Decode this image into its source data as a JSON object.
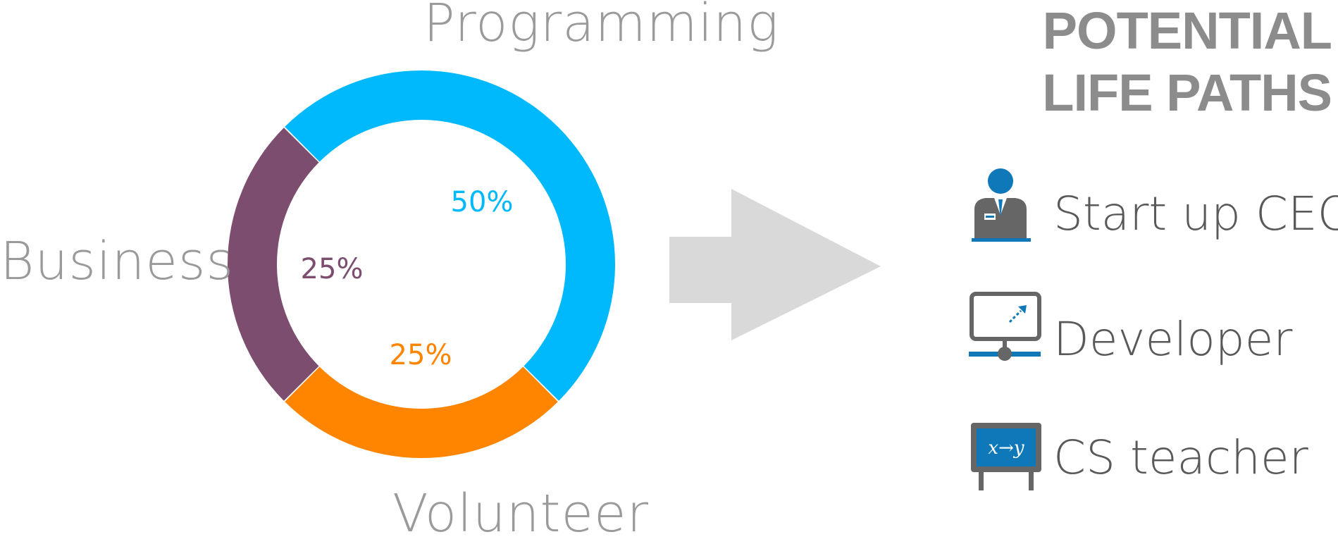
{
  "chart_data": {
    "type": "pie",
    "variant": "donut",
    "categories": [
      "Programming",
      "Volunteer",
      "Business"
    ],
    "values": [
      50,
      25,
      25
    ],
    "value_labels": [
      "50%",
      "25%",
      "25%"
    ],
    "colors": [
      "#00B9FD",
      "#FF8400",
      "#7C4D6F"
    ],
    "title": "",
    "legend": "none"
  },
  "arrow": {
    "color": "#D9D9D9"
  },
  "panel": {
    "title_lines": [
      "POTENTIAL",
      "LIFE PATHS"
    ],
    "items": [
      {
        "label": "Start up CEO",
        "icon": "ceo-icon"
      },
      {
        "label": "Developer",
        "icon": "presentation-board-icon"
      },
      {
        "label": "CS teacher",
        "icon": "chalkboard-icon"
      }
    ],
    "teacher_board_text": "x→y"
  }
}
